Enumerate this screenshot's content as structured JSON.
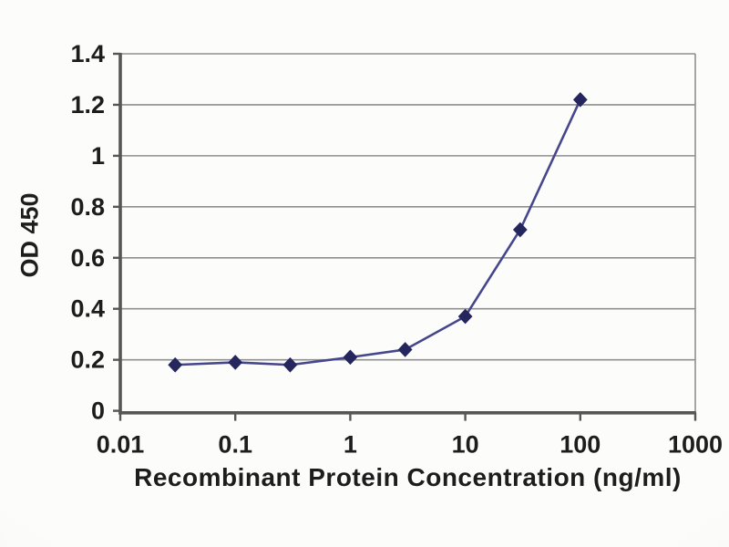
{
  "chart_data": {
    "type": "line",
    "title": "",
    "xlabel": "Recombinant Protein Concentration (ng/ml)",
    "ylabel": "OD 450",
    "x_scale": "log",
    "xlim": [
      0.01,
      1000
    ],
    "ylim": [
      0,
      1.4
    ],
    "x_ticks": [
      0.01,
      0.1,
      1,
      10,
      100,
      1000
    ],
    "x_tick_labels": [
      "0.01",
      "0.1",
      "1",
      "10",
      "100",
      "1000"
    ],
    "y_ticks": [
      0,
      0.2,
      0.4,
      0.6,
      0.8,
      1,
      1.2,
      1.4
    ],
    "y_tick_labels": [
      "0",
      "0.2",
      "0.4",
      "0.6",
      "0.8",
      "1",
      "1.2",
      "1.4"
    ],
    "grid": "horizontal",
    "legend": "none",
    "series": [
      {
        "name": "OD 450",
        "marker": "diamond",
        "x": [
          0.03,
          0.1,
          0.3,
          1,
          3,
          10,
          30,
          100
        ],
        "y": [
          0.18,
          0.19,
          0.18,
          0.21,
          0.24,
          0.37,
          0.71,
          1.22
        ]
      }
    ],
    "colors": {
      "line": "#46468c",
      "marker": "#26265e",
      "grid": "#8f8f8f",
      "border": "#8f8f8f",
      "axis": "#565656",
      "text": "#1d1d1d",
      "background": "#fafaf8"
    }
  }
}
